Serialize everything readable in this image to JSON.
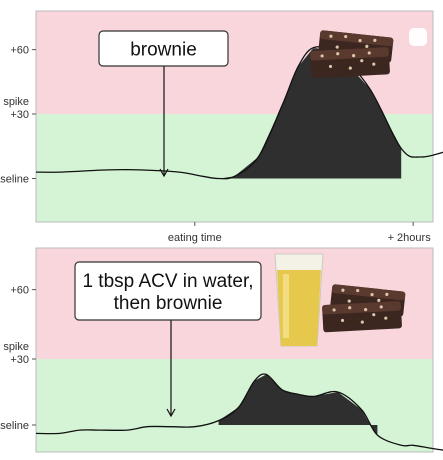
{
  "colors": {
    "spike_zone": "#f9d6dc",
    "normal_zone": "#d5f4d5",
    "area_fill": "#2f2f2f",
    "line": "#111111"
  },
  "chart_data": [
    {
      "type": "area",
      "annotation": "brownie",
      "xlim": [
        0,
        1
      ],
      "ylim": [
        -16,
        78
      ],
      "zones": [
        {
          "name": "spike",
          "range": [
            30,
            78
          ]
        },
        {
          "name": "normal",
          "range": [
            -16,
            30
          ]
        }
      ],
      "ytick_labels": [
        {
          "value": 60,
          "label": "+60"
        },
        {
          "value": 30,
          "label": "spike\n+30"
        },
        {
          "value": 0,
          "label": "baseline"
        }
      ],
      "xtick_labels": [
        {
          "value": 0.4,
          "label": "eating time"
        },
        {
          "value": 0.95,
          "label": "+ 2hours"
        }
      ],
      "series": [
        {
          "x": [
            0,
            0.06,
            0.18,
            0.26,
            0.36,
            0.42,
            0.46,
            0.5,
            0.56,
            0.62,
            0.66,
            0.7,
            0.76,
            0.84,
            0.92,
            0.97,
            1.04
          ],
          "y": [
            3,
            3,
            4,
            4,
            3,
            1,
            0,
            1,
            10,
            34,
            52,
            61,
            58,
            42,
            14,
            10,
            13
          ]
        }
      ],
      "shaded_range": [
        0.46,
        0.92
      ],
      "food_image": "brownie-photo"
    },
    {
      "type": "area",
      "annotation": "1 tbsp ACV in water,\nthen brownie",
      "xlim": [
        0,
        1
      ],
      "ylim": [
        -16,
        78
      ],
      "zones": [
        {
          "name": "spike",
          "range": [
            30,
            78
          ]
        },
        {
          "name": "normal",
          "range": [
            -16,
            30
          ]
        }
      ],
      "ytick_labels": [
        {
          "value": 60,
          "label": "+60"
        },
        {
          "value": 30,
          "label": "spike\n+30"
        },
        {
          "value": 0,
          "label": "baseline"
        }
      ],
      "series": [
        {
          "x": [
            0,
            0.06,
            0.11,
            0.16,
            0.23,
            0.28,
            0.34,
            0.4,
            0.46,
            0.51,
            0.55,
            0.58,
            0.62,
            0.66,
            0.7,
            0.76,
            0.82,
            0.86,
            0.92,
            0.95,
            1.0,
            1.06
          ],
          "y": [
            -5,
            -5,
            -3,
            -3,
            -3,
            -1,
            -1,
            -1,
            2,
            8,
            20,
            23,
            16,
            14,
            13,
            15,
            7,
            -6,
            -12,
            -12,
            -14,
            -16
          ]
        }
      ],
      "shaded_range": [
        0.46,
        0.86
      ],
      "food_image": "acv-glass-and-brownie-photo"
    }
  ]
}
